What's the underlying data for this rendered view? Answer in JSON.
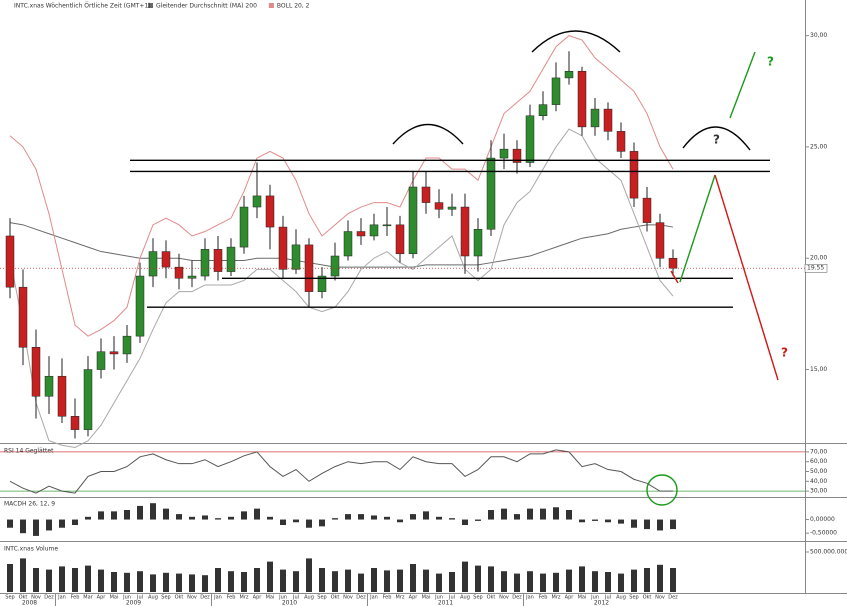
{
  "chart_data": [
    {
      "type": "candlestick",
      "title": "INTC.xnas Wöchentlich Örtliche Zeit (GMT+1)",
      "categories": [
        "Sep",
        "Okt",
        "Nov",
        "Dez",
        "Jan",
        "Feb",
        "Mar",
        "Apr",
        "Mai",
        "Jun",
        "Jul",
        "Aug",
        "Sep",
        "Okt",
        "Nov",
        "Dez",
        "Jan",
        "Feb",
        "Mrz",
        "Apr",
        "Mai",
        "Jun",
        "Jul",
        "Aug",
        "Sep",
        "Okt",
        "Nov",
        "Dez",
        "Jan",
        "Feb",
        "Mrz",
        "Apr",
        "Mai",
        "Jun",
        "Jul",
        "Aug",
        "Sep",
        "Okt",
        "Nov",
        "Dez",
        "Jan",
        "Feb",
        "Mrz",
        "Apr",
        "Mai",
        "Jun",
        "Jul",
        "Aug",
        "Sep",
        "Okt",
        "Nov",
        "Dez"
      ],
      "years": [
        "2008",
        "2009",
        "2010",
        "2011",
        "2012"
      ],
      "open": [
        21.0,
        18.7,
        16.0,
        13.8,
        14.7,
        12.9,
        12.3,
        15.0,
        15.8,
        15.7,
        16.5,
        19.2,
        20.3,
        19.6,
        19.1,
        19.2,
        20.4,
        19.4,
        20.5,
        22.3,
        22.8,
        21.4,
        19.5,
        20.6,
        18.5,
        19.2,
        20.1,
        21.2,
        21.0,
        21.5,
        21.5,
        20.2,
        23.2,
        22.5,
        22.2,
        22.3,
        20.1,
        21.3,
        24.5,
        24.9,
        24.3,
        26.4,
        26.9,
        28.1,
        28.4,
        25.9,
        26.7,
        25.7,
        24.8,
        22.7,
        21.6,
        20.0
      ],
      "high": [
        21.8,
        19.5,
        16.8,
        15.6,
        15.5,
        13.7,
        15.6,
        16.4,
        16.5,
        17.0,
        19.8,
        20.9,
        20.8,
        20.2,
        19.9,
        20.9,
        21.0,
        20.9,
        22.8,
        24.3,
        23.3,
        21.9,
        21.3,
        20.9,
        19.6,
        20.7,
        21.7,
        21.8,
        22.0,
        22.3,
        21.9,
        23.9,
        23.9,
        23.1,
        22.9,
        22.9,
        21.8,
        25.3,
        25.6,
        25.3,
        26.9,
        27.5,
        28.8,
        29.3,
        28.6,
        27.2,
        27.0,
        26.1,
        25.2,
        23.2,
        22.0,
        20.4
      ],
      "low": [
        18.2,
        15.2,
        12.8,
        13.0,
        12.6,
        11.9,
        12.0,
        14.6,
        15.0,
        15.3,
        16.2,
        18.7,
        19.1,
        18.6,
        18.7,
        19.0,
        19.0,
        19.2,
        20.2,
        21.8,
        20.4,
        19.1,
        19.3,
        17.8,
        18.2,
        19.0,
        19.9,
        20.6,
        20.8,
        21.0,
        19.8,
        20.0,
        22.0,
        21.8,
        21.9,
        19.3,
        19.4,
        21.0,
        24.0,
        23.8,
        24.1,
        26.2,
        26.6,
        27.8,
        25.5,
        25.5,
        25.3,
        24.5,
        22.3,
        21.2,
        19.6,
        19.2
      ],
      "close": [
        18.7,
        16.0,
        13.8,
        14.7,
        12.9,
        12.3,
        15.0,
        15.8,
        15.7,
        16.5,
        19.2,
        20.3,
        19.6,
        19.1,
        19.2,
        20.4,
        19.4,
        20.5,
        22.3,
        22.8,
        21.4,
        19.5,
        20.6,
        18.5,
        19.2,
        20.1,
        21.2,
        21.0,
        21.5,
        21.5,
        20.2,
        23.2,
        22.5,
        22.2,
        22.3,
        20.1,
        21.3,
        24.5,
        24.9,
        24.3,
        26.4,
        26.9,
        28.1,
        28.4,
        25.9,
        26.7,
        25.7,
        24.8,
        22.7,
        21.6,
        20.0,
        19.55
      ],
      "up_color": "#2e8b2e",
      "down_color": "#c62020",
      "overlays": [
        {
          "name": "Gleitender Durchschnitt (MA) 200",
          "color": "#6a6a6a",
          "values": [
            21.6,
            21.5,
            21.3,
            21.1,
            20.9,
            20.7,
            20.5,
            20.3,
            20.2,
            20.1,
            20.0,
            20.0,
            20.0,
            20.0,
            19.9,
            19.9,
            19.9,
            19.9,
            19.9,
            20.0,
            20.0,
            20.0,
            19.9,
            19.8,
            19.7,
            19.6,
            19.6,
            19.6,
            19.6,
            19.6,
            19.6,
            19.6,
            19.7,
            19.7,
            19.7,
            19.7,
            19.7,
            19.8,
            19.9,
            20.0,
            20.1,
            20.3,
            20.5,
            20.7,
            20.9,
            21.0,
            21.1,
            21.3,
            21.4,
            21.5,
            21.5,
            21.4
          ]
        },
        {
          "name": "BOLL 20, 2",
          "color": "#e08a8a",
          "values": [
            25.5,
            25.0,
            24.0,
            22.0,
            19.5,
            17.0,
            16.5,
            16.8,
            17.2,
            17.8,
            20.0,
            21.5,
            21.8,
            21.5,
            21.0,
            21.2,
            21.5,
            21.8,
            23.0,
            24.5,
            24.8,
            24.5,
            23.5,
            22.0,
            21.0,
            21.5,
            22.0,
            22.3,
            22.5,
            22.5,
            22.3,
            23.5,
            24.5,
            24.5,
            24.0,
            24.0,
            23.5,
            25.0,
            26.5,
            27.0,
            27.5,
            28.5,
            29.5,
            30.0,
            29.8,
            29.0,
            28.5,
            28.0,
            27.5,
            26.5,
            25.0,
            24.0
          ]
        },
        {
          "color": "#a8a8a8",
          "values": [
            20.0,
            17.0,
            13.5,
            11.8,
            11.6,
            11.5,
            11.8,
            12.5,
            13.5,
            14.5,
            15.5,
            16.8,
            18.0,
            18.5,
            18.5,
            18.8,
            18.8,
            18.8,
            19.0,
            19.5,
            19.5,
            19.0,
            18.5,
            17.8,
            17.6,
            17.8,
            18.5,
            19.5,
            20.0,
            20.3,
            19.8,
            19.5,
            20.0,
            20.5,
            21.0,
            19.5,
            19.0,
            19.5,
            21.5,
            22.5,
            23.0,
            24.0,
            25.0,
            25.8,
            25.5,
            24.5,
            24.0,
            23.5,
            22.0,
            20.5,
            19.0,
            18.3
          ]
        }
      ],
      "ylim": [
        11.7,
        31.6
      ],
      "yticks": [
        {
          "value": 15,
          "label": "15,00"
        },
        {
          "value": 20,
          "label": "20,00"
        },
        {
          "value": 25,
          "label": "25,00"
        },
        {
          "value": 30,
          "label": "30,00"
        }
      ],
      "last_value": 19.55,
      "levels": [
        24.4,
        23.9,
        19.1,
        17.8
      ],
      "annotations": [
        "?",
        "?",
        "?"
      ]
    },
    {
      "type": "line",
      "title": "RSI 14 Geglättet",
      "color": "#555555",
      "values": [
        40,
        33,
        28,
        35,
        30,
        28,
        45,
        50,
        50,
        55,
        65,
        68,
        62,
        58,
        58,
        62,
        55,
        60,
        66,
        70,
        55,
        45,
        52,
        40,
        48,
        55,
        60,
        58,
        60,
        60,
        52,
        65,
        60,
        58,
        58,
        45,
        52,
        65,
        65,
        60,
        68,
        68,
        72,
        70,
        55,
        58,
        52,
        50,
        42,
        38,
        30,
        30
      ],
      "ylim": [
        24,
        75
      ],
      "yticks": [
        {
          "value": 70,
          "label": "70,00"
        },
        {
          "value": 60,
          "label": "60,00"
        },
        {
          "value": 50,
          "label": "50,00"
        },
        {
          "value": 40,
          "label": "40,00"
        },
        {
          "value": 30,
          "label": "30,00"
        }
      ]
    },
    {
      "type": "bar",
      "title": "MACDH 26, 12, 9",
      "color": "#333333",
      "values": [
        -0.3,
        -0.5,
        -0.6,
        -0.4,
        -0.3,
        -0.2,
        0.1,
        0.3,
        0.3,
        0.35,
        0.5,
        0.6,
        0.4,
        0.2,
        0.1,
        0.15,
        0.05,
        0.1,
        0.3,
        0.4,
        0.1,
        -0.2,
        -0.1,
        -0.3,
        -0.25,
        0.05,
        0.2,
        0.2,
        0.15,
        0.1,
        -0.1,
        0.2,
        0.3,
        0.1,
        0.05,
        -0.2,
        -0.05,
        0.35,
        0.4,
        0.2,
        0.4,
        0.4,
        0.45,
        0.35,
        -0.1,
        -0.05,
        -0.1,
        -0.15,
        -0.3,
        -0.35,
        -0.4,
        -0.35
      ],
      "ylim": [
        -0.75,
        0.68
      ],
      "yticks": [
        {
          "value": 0,
          "label": "0,00000"
        },
        {
          "value": -0.5,
          "label": "-0,50000"
        }
      ]
    },
    {
      "type": "bar",
      "title": "INTC.xnas Volume",
      "color": "#333333",
      "values": [
        350000000,
        420000000,
        300000000,
        280000000,
        320000000,
        300000000,
        330000000,
        280000000,
        250000000,
        240000000,
        260000000,
        220000000,
        240000000,
        230000000,
        220000000,
        210000000,
        300000000,
        260000000,
        250000000,
        300000000,
        380000000,
        280000000,
        260000000,
        420000000,
        300000000,
        260000000,
        280000000,
        230000000,
        300000000,
        270000000,
        280000000,
        350000000,
        280000000,
        230000000,
        250000000,
        380000000,
        330000000,
        320000000,
        260000000,
        230000000,
        260000000,
        230000000,
        240000000,
        280000000,
        320000000,
        260000000,
        250000000,
        230000000,
        280000000,
        300000000,
        340000000,
        300000000
      ],
      "ylim": [
        0,
        587500000
      ],
      "yticks": [
        {
          "value": 500000000,
          "label": "500.000.000"
        }
      ]
    }
  ]
}
